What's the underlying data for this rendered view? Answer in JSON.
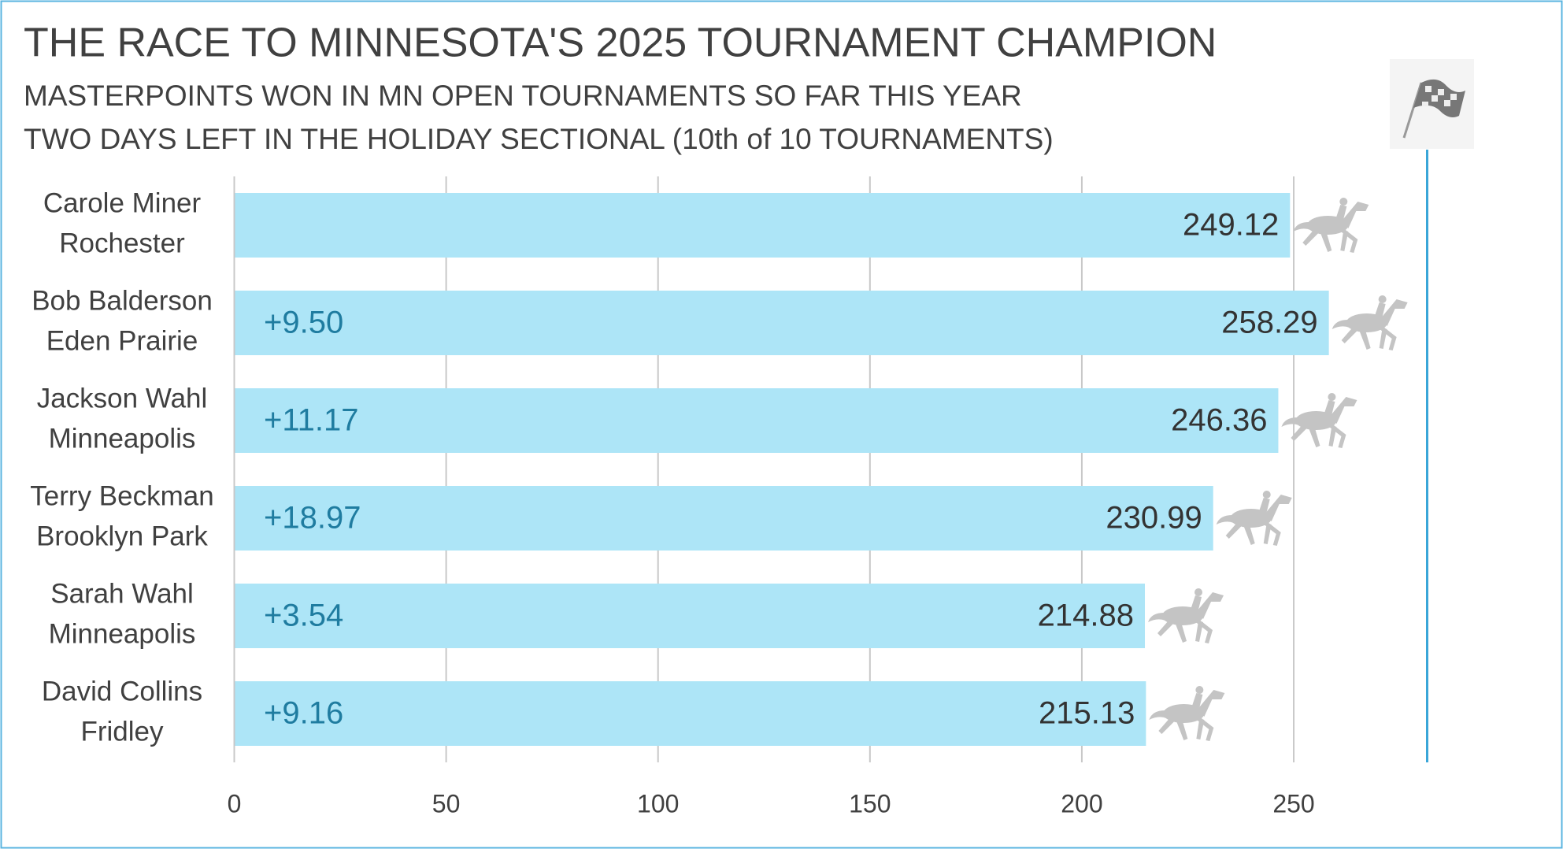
{
  "chart_data": {
    "type": "bar",
    "orientation": "horizontal",
    "title": "THE RACE TO MINNESOTA'S 2025 TOURNAMENT CHAMPION",
    "subtitle": [
      "MASTERPOINTS WON IN MN OPEN TOURNAMENTS SO FAR THIS YEAR",
      "TWO DAYS LEFT IN THE HOLIDAY SECTIONAL (10th of 10 TOURNAMENTS)"
    ],
    "categories": [
      [
        "Carole Miner",
        "Rochester"
      ],
      [
        "Bob Balderson",
        "Eden Prairie"
      ],
      [
        "Jackson Wahl",
        "Minneapolis"
      ],
      [
        "Terry Beckman",
        "Brooklyn Park"
      ],
      [
        "Sarah Wahl",
        "Minneapolis"
      ],
      [
        "David Collins",
        "Fridley"
      ]
    ],
    "values": [
      249.12,
      258.29,
      246.36,
      230.99,
      214.88,
      215.13
    ],
    "color": "#ade5f7",
    "gains": {
      "values": [
        null,
        9.5,
        11.17,
        18.97,
        3.54,
        9.16
      ],
      "value_labels": [
        null,
        "+9.50",
        "+11.17",
        "+18.97",
        "+3.54",
        "+9.16"
      ],
      "color": "#1f7ca0"
    },
    "xlim": [
      0,
      280
    ],
    "xticks": [
      0,
      50,
      100,
      150,
      200,
      250
    ],
    "grid": true
  }
}
